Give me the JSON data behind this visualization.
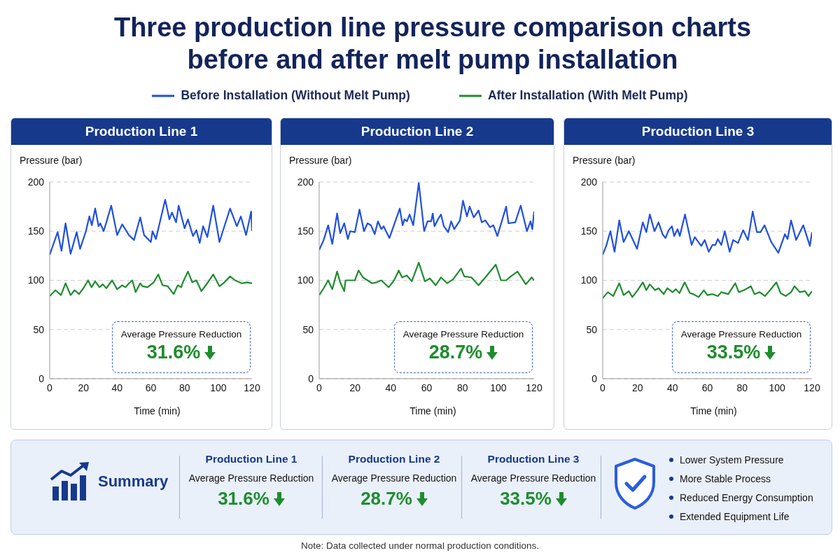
{
  "chart_data": [
    {
      "type": "line",
      "title": "Three production line pressure comparison charts before and after melt pump installation",
      "subtitle": "Production Line 1",
      "xlabel": "Time (min)",
      "ylabel": "Pressure (bar)",
      "xlim": [
        0,
        120
      ],
      "xticks": [
        0,
        20,
        40,
        60,
        80,
        100,
        120
      ],
      "ylim": [
        0,
        200
      ],
      "yticks": [
        0,
        50,
        100,
        150,
        200
      ],
      "grid": "y",
      "legend": "top",
      "annotations": [
        "Average Pressure Reduction",
        "31.6%"
      ],
      "series": [
        {
          "name": "Before Installation (Without Melt Pump)",
          "color": "#1f4fe0",
          "x": [
            0,
            4.7,
            7,
            9.4,
            12.4,
            16,
            18,
            21.5,
            23.5,
            25,
            27,
            29,
            30,
            32,
            33.6,
            36.5,
            40,
            43,
            47,
            50,
            53.7,
            56,
            60,
            61,
            63,
            68.5,
            71,
            72.5,
            75,
            76.5,
            80,
            82,
            85,
            87,
            89,
            91,
            93.5,
            97,
            100.7,
            102.7,
            107,
            111,
            113.4,
            116.5,
            119.5,
            120
          ],
          "values": [
            126,
            149,
            130,
            158,
            127,
            149,
            132,
            150,
            165,
            156,
            173,
            155,
            158,
            150,
            159,
            176,
            146,
            157,
            146,
            141,
            164,
            146,
            139,
            150,
            142,
            182,
            162,
            169,
            159,
            176,
            153,
            162,
            145,
            151,
            138,
            155,
            144,
            176,
            139,
            150,
            173,
            155,
            165,
            146,
            170,
            150
          ]
        },
        {
          "name": "After Installation (With Melt Pump)",
          "color": "#1e8c2e",
          "x": [
            0,
            3.4,
            6.7,
            9.4,
            12.4,
            14.8,
            17.4,
            20,
            22.8,
            24.8,
            27,
            29.5,
            31.5,
            33.6,
            37,
            40,
            43,
            45,
            47,
            49,
            51,
            53.7,
            55,
            58,
            61.7,
            64.4,
            67,
            70,
            73.5,
            76,
            78,
            79,
            82,
            84.6,
            87,
            90,
            92.6,
            97,
            100.7,
            103,
            107,
            110,
            114,
            117,
            120
          ],
          "values": [
            84,
            90,
            85,
            97,
            85,
            90,
            86,
            92,
            100,
            93,
            99,
            93,
            96,
            92,
            100,
            91,
            95,
            93,
            97,
            100,
            88,
            97,
            94,
            93,
            98,
            106,
            95,
            94,
            86,
            95,
            93,
            98,
            109,
            98,
            100,
            89,
            95,
            106,
            94,
            97,
            104,
            100,
            97,
            98,
            97
          ]
        }
      ]
    },
    {
      "type": "line",
      "subtitle": "Production Line 2",
      "xlabel": "Time (min)",
      "ylabel": "Pressure (bar)",
      "xlim": [
        0,
        120
      ],
      "xticks": [
        0,
        20,
        40,
        60,
        80,
        100,
        120
      ],
      "ylim": [
        0,
        200
      ],
      "yticks": [
        0,
        50,
        100,
        150,
        200
      ],
      "grid": "y",
      "annotations": [
        "Average Pressure Reduction",
        "28.7%"
      ],
      "series": [
        {
          "color": "#1f4fe0",
          "x": [
            0,
            2.5,
            5,
            7.3,
            10,
            11.7,
            14,
            16,
            17.3,
            19.9,
            22.5,
            25,
            27,
            28.9,
            31,
            32.8,
            34.7,
            36,
            37.3,
            39.2,
            42.5,
            45,
            46.6,
            47.6,
            49,
            50.5,
            52.5,
            55.6,
            58.6,
            60.5,
            62.5,
            63.4,
            64.4,
            66.3,
            68,
            69.6,
            72,
            73.7,
            75.4,
            78.6,
            80.3,
            82.5,
            84,
            86.3,
            89,
            90.8,
            92.8,
            95.4,
            97.3,
            99.5,
            104.4,
            105.7,
            109.5,
            112.5,
            116,
            118,
            119,
            120
          ],
          "values": [
            131,
            141,
            156,
            137,
            168,
            148,
            158,
            142,
            150,
            149,
            172,
            150,
            158,
            156,
            147,
            160,
            152,
            155,
            150,
            143,
            160,
            173,
            156,
            162,
            160,
            167,
            156,
            199,
            150,
            160,
            160,
            168,
            155,
            162,
            167,
            155,
            149,
            160,
            152,
            161,
            181,
            165,
            175,
            164,
            171,
            159,
            161,
            154,
            156,
            145,
            175,
            158,
            159,
            176,
            150,
            160,
            152,
            170
          ]
        },
        {
          "color": "#1e8c2e",
          "x": [
            0,
            2.5,
            5,
            7.3,
            10,
            11.7,
            14,
            14.7,
            17.3,
            19.9,
            22,
            24.4,
            27,
            29.5,
            32,
            34.7,
            38.8,
            41.8,
            44.4,
            46.3,
            48.9,
            51.7,
            55.6,
            59,
            61.8,
            65,
            68,
            71.5,
            74.7,
            79.2,
            81,
            85,
            89,
            92.8,
            98.6,
            101.5,
            104.4,
            107,
            110.7,
            115.4,
            118.6,
            120
          ],
          "values": [
            85,
            92,
            100,
            91,
            109,
            98,
            89,
            100,
            100,
            100,
            110,
            103,
            100,
            97,
            98,
            100,
            93,
            100,
            110,
            103,
            105,
            99,
            118,
            99,
            102,
            95,
            103,
            97,
            101,
            112,
            104,
            103,
            95,
            103,
            116,
            100,
            100,
            104,
            109,
            96,
            103,
            100
          ]
        }
      ]
    },
    {
      "type": "line",
      "subtitle": "Production Line 3",
      "xlabel": "Time (min)",
      "ylabel": "Pressure (bar)",
      "xlim": [
        0,
        120
      ],
      "xticks": [
        0,
        20,
        40,
        60,
        80,
        100,
        120
      ],
      "ylim": [
        0,
        200
      ],
      "yticks": [
        0,
        50,
        100,
        150,
        200
      ],
      "grid": "y",
      "annotations": [
        "Average Pressure Reduction",
        "33.5%"
      ],
      "series": [
        {
          "color": "#1f4fe0",
          "x": [
            0,
            2,
            4.4,
            6.8,
            9.5,
            12,
            15,
            19.7,
            23,
            25,
            27,
            29.7,
            32,
            34.3,
            36,
            37.8,
            39.7,
            41,
            42.9,
            44.2,
            47.2,
            51,
            52.8,
            56.5,
            58.5,
            60.8,
            62.9,
            64.6,
            66,
            68,
            70,
            72.8,
            74.8,
            77.6,
            80.5,
            83.3,
            86,
            88.4,
            90.5,
            92.8,
            96.6,
            100.7,
            104.5,
            106,
            108,
            110.9,
            115,
            118.8,
            120
          ],
          "values": [
            126,
            135,
            150,
            129,
            161,
            139,
            150,
            132,
            159,
            149,
            167,
            150,
            159,
            147,
            143,
            151,
            155,
            145,
            152,
            145,
            167,
            136,
            144,
            135,
            141,
            129,
            136,
            136,
            142,
            136,
            150,
            129,
            141,
            138,
            151,
            141,
            170,
            149,
            149,
            156,
            139,
            128,
            147,
            142,
            161,
            141,
            156,
            135,
            149
          ]
        },
        {
          "color": "#1e8c2e",
          "x": [
            0,
            3,
            6,
            9.5,
            12,
            15,
            17,
            20,
            23,
            25,
            27,
            30,
            32,
            35,
            37,
            40,
            42,
            44,
            47,
            50,
            52,
            55,
            58,
            60,
            63,
            66,
            68,
            72,
            76,
            78,
            81,
            85,
            87,
            90,
            93,
            96,
            99.6,
            102,
            105,
            108,
            110,
            113,
            116,
            118,
            120
          ],
          "values": [
            82,
            88,
            84,
            97,
            85,
            89,
            83,
            90,
            98,
            90,
            96,
            90,
            92,
            86,
            92,
            88,
            91,
            87,
            98,
            87,
            86,
            83,
            90,
            85,
            86,
            84,
            88,
            86,
            97,
            88,
            90,
            94,
            86,
            88,
            84,
            90,
            98,
            87,
            84,
            88,
            94,
            88,
            89,
            84,
            89
          ]
        }
      ]
    },
    {
      "type": "other",
      "title": "Summary",
      "annotations": [
        "Production Line 1",
        "Average Pressure Reduction",
        "31.6%",
        "Production Line 2",
        "Average Pressure Reduction",
        "28.7%",
        "Production Line 3",
        "Average Pressure Reduction",
        "33.5%",
        "Lower System Pressure",
        "More Stable Process",
        "Reduced Energy Consumption",
        "Extended Equipment Life",
        "Note: Data collected under normal production conditions."
      ]
    }
  ]
}
